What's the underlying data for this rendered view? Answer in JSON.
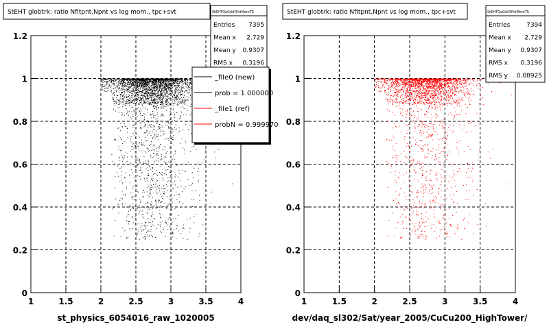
{
  "footer_note": "",
  "chart_data": [
    {
      "type": "scatter",
      "title": "StEHT globtrk: ratio Nfitpnt,Npnt vs log mom., tpc+svt",
      "xlabel": "st_physics_6054016_raw_1020005",
      "ylabel": "",
      "xlim": [
        1,
        4
      ],
      "ylim": [
        0,
        1.2
      ],
      "xticks": [
        "1",
        "1.5",
        "2",
        "2.5",
        "3",
        "3.5",
        "4"
      ],
      "yticks": [
        "0",
        "0.2",
        "0.4",
        "0.6",
        "0.8",
        "1",
        "1.2"
      ],
      "grid": true,
      "marker_color": "#000000",
      "stats": {
        "name": "StEHTQaGrkRPntMomTS",
        "rows": [
          {
            "label": "Entries",
            "value": "7395"
          },
          {
            "label": "Mean x",
            "value": "2.729"
          },
          {
            "label": "Mean y",
            "value": "0.9307"
          },
          {
            "label": "RMS x",
            "value": "0.3196"
          }
        ]
      },
      "legend": {
        "position": "top-right",
        "entries": [
          {
            "label": "_file0 (new)",
            "color": "#000000"
          },
          {
            "label": "prob = 1.000000",
            "color": "#000000"
          },
          {
            "label": "_file1 (ref)",
            "color": "#ff0000"
          },
          {
            "label": "probN = 0.999970",
            "color": "#ff0000"
          }
        ]
      },
      "distribution": {
        "entries": 7395,
        "mean_x": 2.729,
        "mean_y": 0.9307,
        "rms_x": 0.3196,
        "x_range": [
          2.0,
          4.0
        ],
        "y_max": 1.0
      }
    },
    {
      "type": "scatter",
      "title": "StEHT globtrk: ratio Nfitpnt,Npnt vs log mom., tpc+svt",
      "xlabel": "dev/daq_sl302/Sat/year_2005/CuCu200_HighTower/",
      "ylabel": "",
      "xlim": [
        1,
        4
      ],
      "ylim": [
        0,
        1.2
      ],
      "xticks": [
        "1",
        "1.5",
        "2",
        "2.5",
        "3",
        "3.5",
        "4"
      ],
      "yticks": [
        "0",
        "0.2",
        "0.4",
        "0.6",
        "0.8",
        "1",
        "1.2"
      ],
      "grid": true,
      "marker_color": "#ff0000",
      "stats": {
        "name": "StEHTQaGrkRPntMomTS",
        "rows": [
          {
            "label": "Entries",
            "value": "7394"
          },
          {
            "label": "Mean x",
            "value": "2.729"
          },
          {
            "label": "Mean y",
            "value": "0.9307"
          },
          {
            "label": "RMS x",
            "value": "0.3196"
          },
          {
            "label": "RMS y",
            "value": "0.08925"
          }
        ]
      },
      "distribution": {
        "entries": 7394,
        "mean_x": 2.729,
        "mean_y": 0.9307,
        "rms_x": 0.3196,
        "rms_y": 0.08925,
        "x_range": [
          2.0,
          4.0
        ],
        "y_max": 1.0
      }
    }
  ]
}
